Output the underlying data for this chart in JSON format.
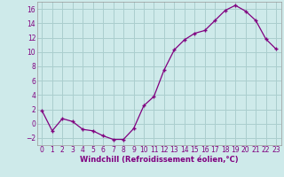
{
  "x": [
    0,
    1,
    2,
    3,
    4,
    5,
    6,
    7,
    8,
    9,
    10,
    11,
    12,
    13,
    14,
    15,
    16,
    17,
    18,
    19,
    20,
    21,
    22,
    23
  ],
  "y": [
    1.8,
    -1.0,
    0.7,
    0.3,
    -0.8,
    -1.0,
    -1.7,
    -2.2,
    -2.2,
    -0.7,
    2.5,
    3.8,
    7.5,
    10.3,
    11.7,
    12.6,
    13.0,
    14.4,
    15.8,
    16.5,
    15.7,
    14.4,
    11.8,
    10.4
  ],
  "xlabel": "Windchill (Refroidissement éolien,°C)",
  "ylim": [
    -3,
    17
  ],
  "yticks": [
    -2,
    0,
    2,
    4,
    6,
    8,
    10,
    12,
    14,
    16
  ],
  "xticks": [
    0,
    1,
    2,
    3,
    4,
    5,
    6,
    7,
    8,
    9,
    10,
    11,
    12,
    13,
    14,
    15,
    16,
    17,
    18,
    19,
    20,
    21,
    22,
    23
  ],
  "line_color": "#800080",
  "marker_color": "#800080",
  "bg_color": "#ceeaea",
  "grid_color": "#aacece",
  "label_fontsize": 6.0,
  "tick_fontsize": 5.5
}
